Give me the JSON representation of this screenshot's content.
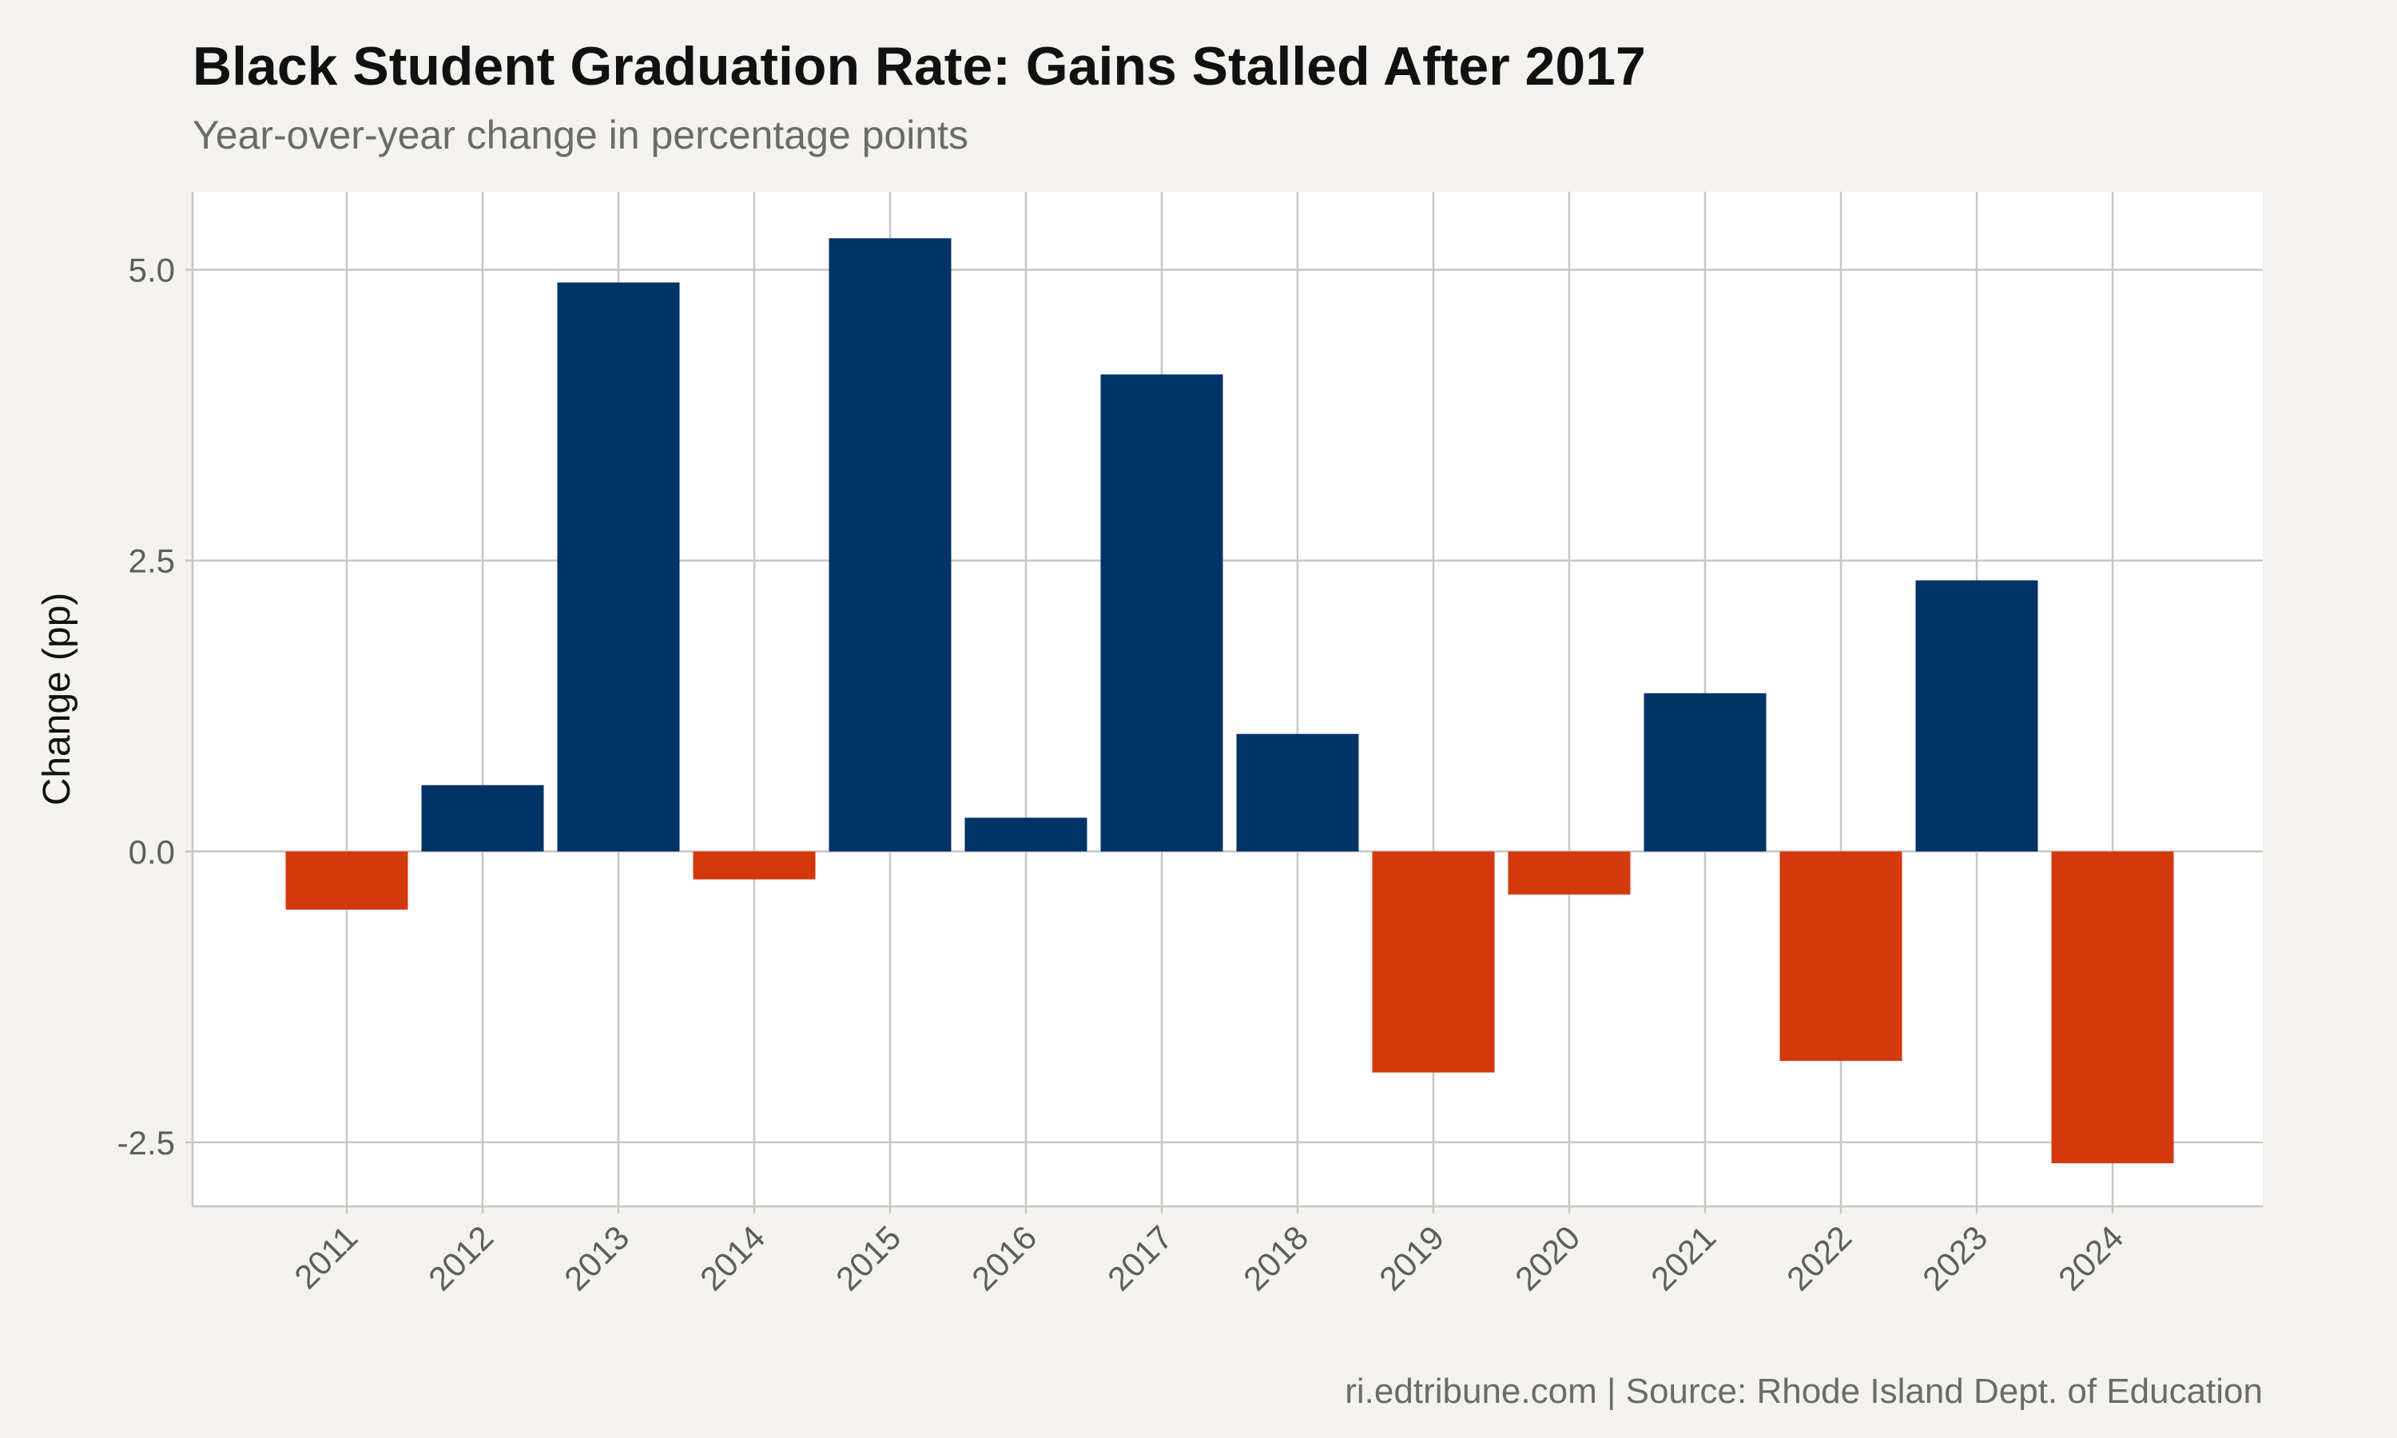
{
  "header": {
    "title": "Black Student Graduation Rate: Gains Stalled After 2017",
    "subtitle": "Year-over-year change in percentage points"
  },
  "footer": {
    "caption": "ri.edtribune.com | Source: Rhode Island Dept. of Education"
  },
  "colors": {
    "positive": "#003366",
    "negative": "#d4380d",
    "panel": "#ffffff",
    "background": "#f4f2ee",
    "grid": "#c8c6c2"
  },
  "chart_data": {
    "type": "bar",
    "categories": [
      "2011",
      "2012",
      "2013",
      "2014",
      "2015",
      "2016",
      "2017",
      "2018",
      "2019",
      "2020",
      "2021",
      "2022",
      "2023",
      "2024"
    ],
    "values": [
      -0.5,
      0.57,
      4.89,
      -0.24,
      5.27,
      0.29,
      4.1,
      1.01,
      -1.9,
      -0.37,
      1.36,
      -1.8,
      2.33,
      -2.68
    ],
    "title": "Black Student Graduation Rate: Gains Stalled After 2017",
    "subtitle": "Year-over-year change in percentage points",
    "xlabel": "",
    "ylabel": "Change (pp)",
    "ylim": [
      -3.05,
      5.67
    ],
    "yticks": [
      -2.5,
      0.0,
      2.5,
      5.0
    ],
    "ytick_labels": [
      "-2.5",
      "0.0",
      "2.5",
      "5.0"
    ],
    "grid": true,
    "legend": "none",
    "color_rule": "positive values navy, negative values orange"
  }
}
